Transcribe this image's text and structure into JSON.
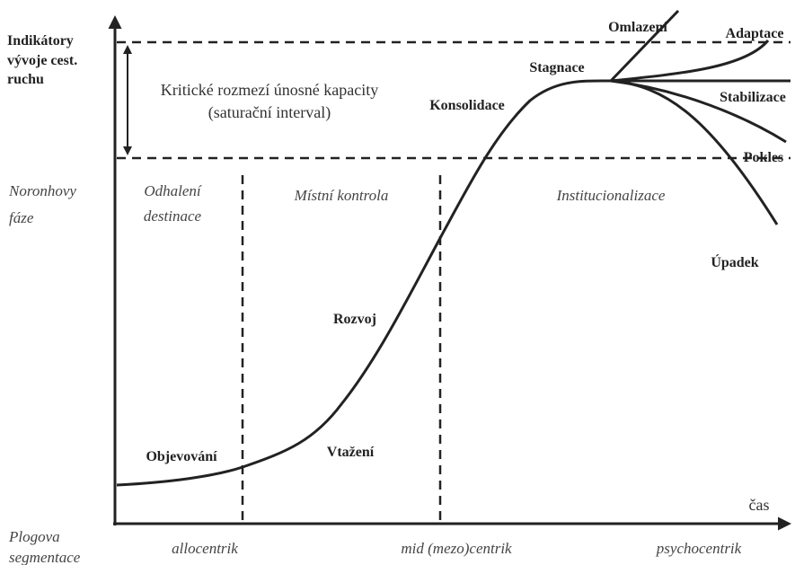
{
  "y_axis_label": [
    "Indikátory",
    "vývoje cest.",
    "ruchu"
  ],
  "capacity": [
    "Kritické rozmezí únosné kapacity",
    "(saturační interval)"
  ],
  "phases": {
    "title": [
      "Noronhovy",
      "fáze"
    ],
    "items": [
      [
        "Odhalení",
        "destinace"
      ],
      [
        "Místní kontrola"
      ],
      [
        "Institucionalizace"
      ]
    ]
  },
  "stages": [
    "Objevování",
    "Vtažení",
    "Rozvoj",
    "Konsolidace",
    "Stagnace",
    "Omlazení",
    "Adaptace",
    "Stabilizace",
    "Pokles",
    "Úpadek"
  ],
  "x_axis_label": "čas",
  "segmentation": {
    "title": [
      "Plogova",
      "segmentace"
    ],
    "items": [
      "allocentrik",
      "mid (mezo)centrik",
      "psychocentrik"
    ]
  }
}
